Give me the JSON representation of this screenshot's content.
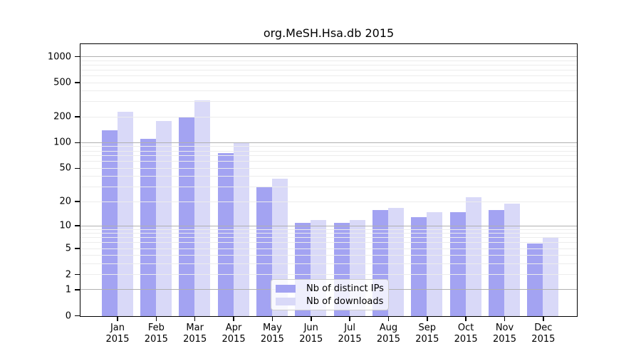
{
  "title": "org.MeSH.Hsa.db 2015",
  "chart_data": {
    "type": "bar",
    "title": "org.MeSH.Hsa.db 2015",
    "categories": [
      "Jan 2015",
      "Feb 2015",
      "Mar 2015",
      "Apr 2015",
      "May 2015",
      "Jun 2015",
      "Jul 2015",
      "Aug 2015",
      "Sep 2015",
      "Oct 2015",
      "Nov 2015",
      "Dec 2015"
    ],
    "series": [
      {
        "name": "Nb of distinct IPs",
        "color": "#a3a3f2",
        "values": [
          142,
          111,
          200,
          77,
          30,
          11,
          11,
          16,
          13,
          15,
          16,
          6
        ]
      },
      {
        "name": "Nb of downloads",
        "color": "#d9d9f8",
        "values": [
          230,
          180,
          312,
          100,
          38,
          12,
          12,
          17,
          15,
          23,
          19,
          7
        ]
      }
    ],
    "xlabel": "",
    "ylabel": "",
    "yscale": "log1p",
    "yticks": [
      0,
      1,
      2,
      5,
      10,
      20,
      50,
      100,
      200,
      500,
      1000
    ],
    "ylim": [
      0,
      1400
    ],
    "grid": "on",
    "major_gridlines": [
      1,
      10,
      100,
      1000
    ],
    "legend_position": "lower-center-inside",
    "colors": {
      "bar_distinct_ips": "#a3a3f2",
      "bar_downloads": "#d9d9f8",
      "major_grid": "#b0b0b0",
      "minor_grid": "#ececec",
      "axis": "#000000",
      "legend_border": "#cccccc"
    }
  },
  "legend": {
    "items": [
      {
        "label": "Nb of distinct IPs",
        "color": "#a3a3f2"
      },
      {
        "label": "Nb of downloads",
        "color": "#d9d9f8"
      }
    ]
  }
}
